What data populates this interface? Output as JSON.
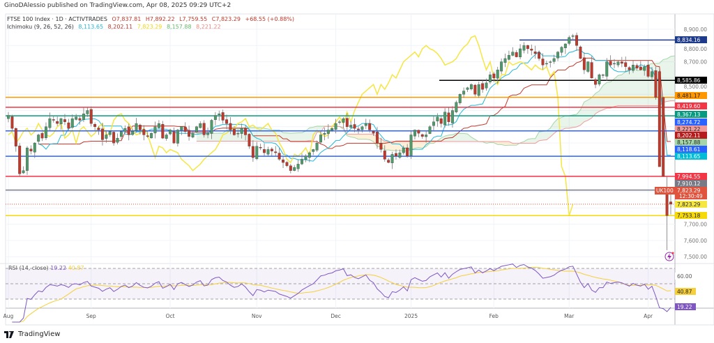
{
  "publisher": "GinoDAlessio published on TradingView.com, Apr 08, 2025 09:29 UTC+2",
  "header": {
    "symbol": "FTSE 100 Index · 1D · ACTIVTRADES",
    "open": "O7,837.81",
    "high": "H7,892.22",
    "low": "L7,759.55",
    "close": "C7,823.29",
    "change": "+68.55 (+0.88%)"
  },
  "ichimoku": {
    "label": "Ichimoku (9, 26, 52, 26)",
    "values": [
      "8,113.65",
      "8,202.11",
      "7,823.29",
      "8,157.88",
      "8,221.22"
    ],
    "colors": [
      "#22b8d8",
      "#c0392b",
      "#f5d90a",
      "#66bb6a",
      "#ef8a80"
    ]
  },
  "rsi": {
    "label": "RSI (14, close)",
    "value": "19.22",
    "ma_value": "40.87",
    "axis_label": "60.00",
    "colors": {
      "rsi": "#7e57c2",
      "ma": "#f5d03a"
    }
  },
  "symbol_badge": "UK100",
  "countdown": "12:30:49",
  "footer_brand": "TradingView",
  "chart_data": {
    "type": "candlestick",
    "interval": "1D",
    "x_labels": [
      "Aug",
      "Sep",
      "Oct",
      "Nov",
      "Dec",
      "2025",
      "Feb",
      "Mar",
      "Apr"
    ],
    "y_ticks": [
      "8,900.00",
      "8,800.00",
      "8,700.00",
      "8,500.00",
      "7,700.00",
      "7,600.00",
      "7,500.00"
    ],
    "ylim": [
      7450,
      8950
    ],
    "grid": true,
    "colors": {
      "up": "#4f9a6a",
      "down": "#c0392b"
    },
    "closes": [
      8370,
      8290,
      8180,
      8010,
      8030,
      8170,
      8150,
      8200,
      8250,
      8230,
      8300,
      8350,
      8340,
      8320,
      8350,
      8330,
      8290,
      8350,
      8360,
      8340,
      8380,
      8400,
      8320,
      8300,
      8280,
      8220,
      8250,
      8270,
      8200,
      8230,
      8270,
      8290,
      8250,
      8270,
      8320,
      8280,
      8250,
      8240,
      8260,
      8300,
      8320,
      8230,
      8250,
      8280,
      8200,
      8280,
      8300,
      8270,
      8240,
      8260,
      8300,
      8320,
      8250,
      8260,
      8340,
      8370,
      8380,
      8340,
      8320,
      8280,
      8250,
      8260,
      8290,
      8250,
      8180,
      8110,
      8180,
      8170,
      8140,
      8160,
      8150,
      8140,
      8100,
      8080,
      8060,
      8030,
      8050,
      8070,
      8100,
      8120,
      8140,
      8160,
      8200,
      8250,
      8260,
      8280,
      8290,
      8320,
      8330,
      8350,
      8300,
      8310,
      8290,
      8280,
      8300,
      8320,
      8280,
      8260,
      8200,
      8160,
      8100,
      8080,
      8130,
      8120,
      8140,
      8170,
      8120,
      8250,
      8280,
      8260,
      8240,
      8250,
      8300,
      8330,
      8360,
      8320,
      8390,
      8330,
      8400,
      8450,
      8500,
      8520,
      8540,
      8560,
      8500,
      8560,
      8530,
      8570,
      8620,
      8600,
      8650,
      8700,
      8720,
      8740,
      8760,
      8730,
      8780,
      8800,
      8780,
      8770,
      8750,
      8720,
      8680,
      8690,
      8700,
      8720,
      8760,
      8790,
      8810,
      8850,
      8860,
      8800,
      8720,
      8650,
      8700,
      8600,
      8560,
      8620,
      8620,
      8700,
      8680,
      8690,
      8700,
      8690,
      8670,
      8650,
      8680,
      8660,
      8650,
      8670,
      8610,
      8640,
      8480,
      8054,
      7753,
      7823.29
    ],
    "last_candle": {
      "open": 7837.81,
      "high": 7892.22,
      "low": 7759.55,
      "close": 7823.29
    },
    "price_levels": [
      {
        "value": "8,834.16",
        "price": 8834.16,
        "color": "#1e3a8a"
      },
      {
        "value": "8,585.86",
        "price": 8585.86,
        "color": "#000000"
      },
      {
        "value": "8,481.17",
        "price": 8481.17,
        "color": "#ff9800"
      },
      {
        "value": "8,419.60",
        "price": 8419.6,
        "color": "#f23645"
      },
      {
        "value": "8,367.13",
        "price": 8367.13,
        "color": "#089981"
      },
      {
        "value": "8,274.72",
        "price": 8274.72,
        "color": "#2962ff"
      },
      {
        "value": "8,118.61",
        "price": 8118.61,
        "color": "#2962ff"
      },
      {
        "value": "7,994.55",
        "price": 7994.55,
        "color": "#f23645"
      },
      {
        "value": "7,910.12",
        "price": 7910.12,
        "color": "#787b86"
      },
      {
        "value": "7,753.18",
        "price": 7753.18,
        "color": "#f5d90a"
      }
    ],
    "indicator_axis_labels": [
      {
        "value": "8,221.22",
        "color": "#ef9a9a"
      },
      {
        "value": "8,202.11",
        "color": "#b71c1c"
      },
      {
        "value": "8,157.88",
        "color": "#a5d6a7"
      },
      {
        "value": "8,113.65",
        "color": "#00bcd4"
      },
      {
        "value": "7,823.29",
        "color": "#f5e642"
      }
    ],
    "current_price": {
      "value": "7,823.29",
      "color": "#e0533d"
    }
  }
}
